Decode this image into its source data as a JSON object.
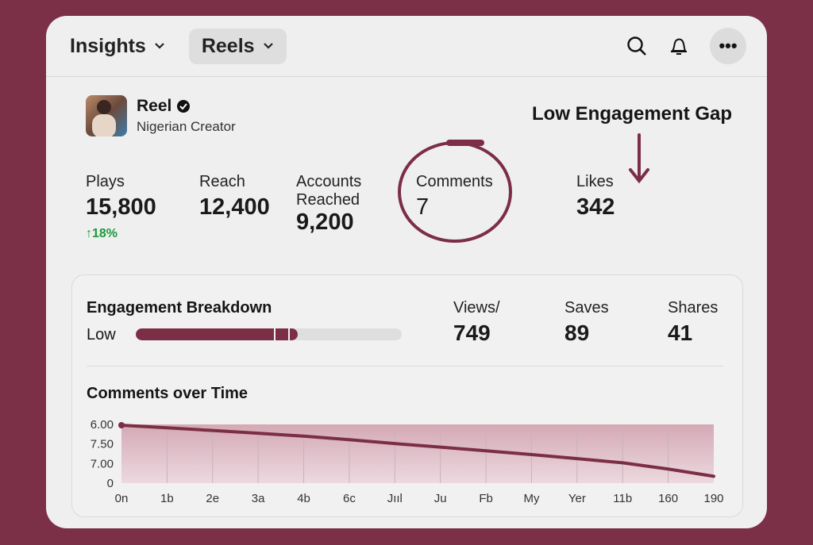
{
  "header": {
    "dropdown1": "Insights",
    "dropdown2": "Reels"
  },
  "profile": {
    "name": "Reel",
    "subtitle": "Nigerian Creator",
    "verified": true
  },
  "annotation": "Low Engagement Gap",
  "metrics": [
    {
      "label": "Plays",
      "value": "15,800",
      "change": "18%"
    },
    {
      "label": "Reach",
      "value": "12,400"
    },
    {
      "label": "Accounts Reached",
      "value": "9,200"
    },
    {
      "label": "Comments",
      "value": "7"
    },
    {
      "label": "Likes",
      "value": "342"
    }
  ],
  "breakdown": {
    "title": "Engagement Breakdown",
    "level": "Low",
    "fill_percent": 61,
    "stats": [
      {
        "label": "Views/",
        "value": "749"
      },
      {
        "label": "Saves",
        "value": "89"
      },
      {
        "label": "Shares",
        "value": "41"
      }
    ]
  },
  "colors": {
    "accent": "#7b2e45",
    "positive": "#1a9a3c",
    "background": "#7b3047"
  },
  "chart_data": {
    "type": "area",
    "title": "Comments over Time",
    "x": [
      "0n",
      "1b",
      "2e",
      "3a",
      "4b",
      "6c",
      "Jııl",
      "Ju",
      "Fb",
      "My",
      "Yer",
      "11b",
      "160",
      "190"
    ],
    "yticks": [
      {
        "pos": 3,
        "label": "6.00"
      },
      {
        "pos": 2,
        "label": "7.50"
      },
      {
        "pos": 1,
        "label": "7.00"
      },
      {
        "pos": 0,
        "label": "0"
      }
    ],
    "ylim": [
      0,
      3
    ],
    "values": [
      2.96,
      2.83,
      2.69,
      2.55,
      2.4,
      2.22,
      2.02,
      1.84,
      1.65,
      1.46,
      1.25,
      1.04,
      0.72,
      0.35
    ],
    "grid": "vertical"
  }
}
